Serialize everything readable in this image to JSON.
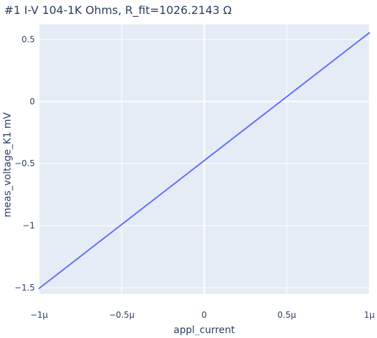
{
  "chart_data": {
    "type": "line",
    "title": "#1 I-V 104-1K Ohms, R_fit=1026.2143 Ω",
    "xlabel": "appl_current",
    "ylabel": "meas_voltage_K1 mV",
    "xlim": [
      -1e-06,
      1e-06
    ],
    "ylim": [
      -1.55,
      0.62
    ],
    "grid": true,
    "legend": "none",
    "colors": {
      "plot_background": "#e5ecf6",
      "grid": "#ffffff",
      "line": "#636efa",
      "text": "#2a3f5f"
    },
    "x_ticks": [
      {
        "value": -1e-06,
        "label": "−1µ"
      },
      {
        "value": -5e-07,
        "label": "−0.5µ"
      },
      {
        "value": 0,
        "label": "0"
      },
      {
        "value": 5e-07,
        "label": "0.5µ"
      },
      {
        "value": 1e-06,
        "label": "1µ"
      }
    ],
    "y_ticks": [
      {
        "value": -1.5,
        "label": "−1.5"
      },
      {
        "value": -1,
        "label": "−1"
      },
      {
        "value": -0.5,
        "label": "−0.5"
      },
      {
        "value": 0,
        "label": "0"
      },
      {
        "value": 0.5,
        "label": "0.5"
      }
    ],
    "series": [
      {
        "x": [
          -1e-06,
          1e-06
        ],
        "y": [
          -1.505,
          0.553
        ]
      }
    ]
  }
}
